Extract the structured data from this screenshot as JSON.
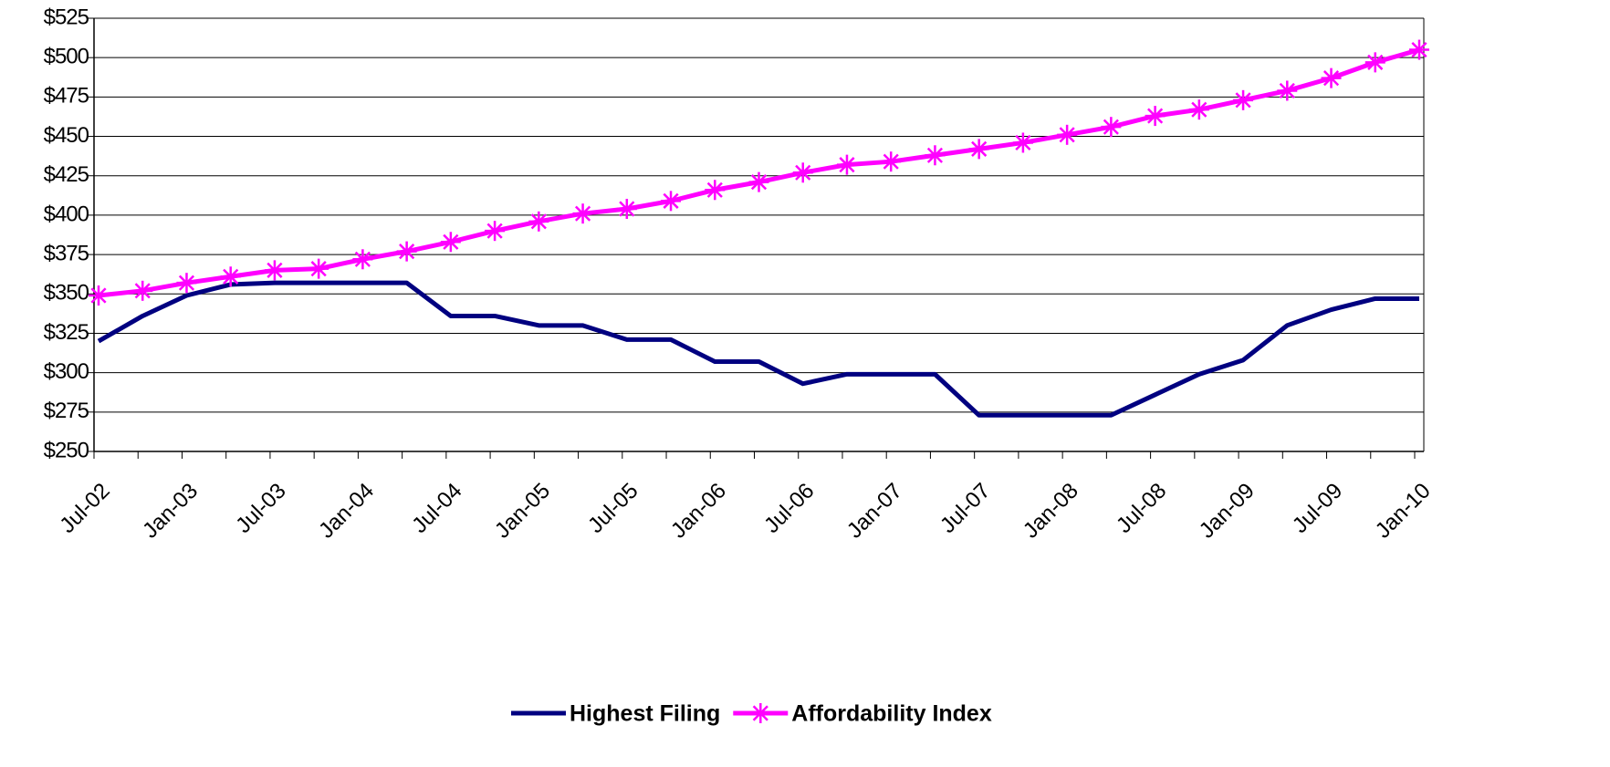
{
  "chart_data": {
    "type": "line",
    "categories": [
      "Jul-02",
      null,
      "Jan-03",
      null,
      "Jul-03",
      null,
      "Jan-04",
      null,
      "Jul-04",
      null,
      "Jan-05",
      null,
      "Jul-05",
      null,
      "Jan-06",
      null,
      "Jul-06",
      null,
      "Jan-07",
      null,
      "Jul-07",
      null,
      "Jan-08",
      null,
      "Jul-08",
      null,
      "Jan-09",
      null,
      "Jul-09",
      null,
      "Jan-10"
    ],
    "series": [
      {
        "name": "Highest Filing",
        "color": "#000080",
        "marker": "none",
        "values": [
          320,
          336,
          349,
          356,
          357,
          357,
          357,
          357,
          336,
          336,
          330,
          330,
          321,
          321,
          307,
          307,
          293,
          299,
          299,
          299,
          273,
          273,
          273,
          273,
          286,
          299,
          308,
          330,
          340,
          347,
          347
        ]
      },
      {
        "name": "Affordability Index",
        "color": "#ff00ff",
        "marker": "asterisk",
        "values": [
          349,
          352,
          357,
          361,
          365,
          366,
          372,
          377,
          383,
          390,
          396,
          401,
          404,
          409,
          416,
          421,
          427,
          432,
          434,
          438,
          442,
          446,
          451,
          456,
          463,
          467,
          473,
          479,
          487,
          497,
          505
        ]
      }
    ],
    "ylim": [
      250,
      525
    ],
    "yticks": [
      {
        "value": 250,
        "label": "$250"
      },
      {
        "value": 275,
        "label": "$275"
      },
      {
        "value": 300,
        "label": "$300"
      },
      {
        "value": 325,
        "label": "$325"
      },
      {
        "value": 350,
        "label": "$350"
      },
      {
        "value": 375,
        "label": "$375"
      },
      {
        "value": 400,
        "label": "$400"
      },
      {
        "value": 425,
        "label": "$425"
      },
      {
        "value": 450,
        "label": "$450"
      },
      {
        "value": 475,
        "label": "$475"
      },
      {
        "value": 500,
        "label": "$500"
      },
      {
        "value": 525,
        "label": "$525"
      }
    ],
    "grid": true,
    "legend": "bottom"
  }
}
